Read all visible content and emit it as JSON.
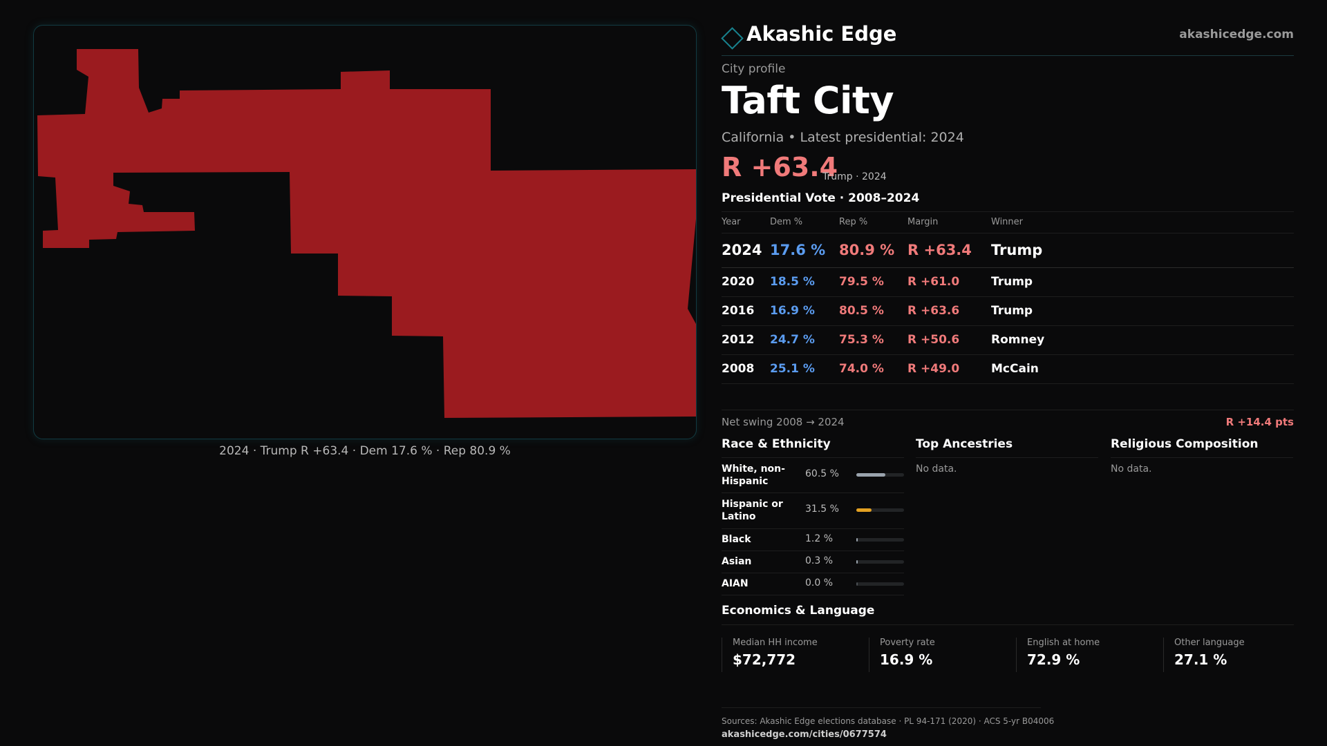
{
  "brand": {
    "name": "Akashic Edge",
    "url": "akashicedge.com",
    "accent": "#18828e"
  },
  "map": {
    "fill_color": "#9b1b1f",
    "caption": "2024 · Trump R +63.4 · Dem 17.6 % · Rep 80.9 %"
  },
  "header": {
    "label": "City profile",
    "city": "Taft City",
    "subtitle": "California • Latest presidential: 2024",
    "margin": "R +63.4",
    "margin_note": "Trump · 2024"
  },
  "vote": {
    "title": "Presidential Vote · 2008–2024",
    "columns": [
      "Year",
      "Dem %",
      "Rep %",
      "Margin",
      "Winner"
    ],
    "rows": [
      {
        "year": "2024",
        "dem": "17.6 %",
        "rep": "80.9 %",
        "margin": "R +63.4",
        "winner": "Trump"
      },
      {
        "year": "2020",
        "dem": "18.5 %",
        "rep": "79.5 %",
        "margin": "R +61.0",
        "winner": "Trump"
      },
      {
        "year": "2016",
        "dem": "16.9 %",
        "rep": "80.5 %",
        "margin": "R +63.6",
        "winner": "Trump"
      },
      {
        "year": "2012",
        "dem": "24.7 %",
        "rep": "75.3 %",
        "margin": "R +50.6",
        "winner": "Romney"
      },
      {
        "year": "2008",
        "dem": "25.1 %",
        "rep": "74.0 %",
        "margin": "R +49.0",
        "winner": "McCain"
      }
    ],
    "swing_label": "Net swing 2008 → 2024",
    "swing_value": "R +14.4 pts",
    "dem_color": "#5b9cf0",
    "rep_color": "#f07a7a"
  },
  "race": {
    "title": "Race & Ethnicity",
    "items": [
      {
        "label": "White, non-Hispanic",
        "pct": "60.5 %",
        "value": 60.5,
        "color": "#9aa3ad"
      },
      {
        "label": "Hispanic or Latino",
        "pct": "31.5 %",
        "value": 31.5,
        "color": "#e3a122"
      },
      {
        "label": "Black",
        "pct": "1.2 %",
        "value": 1.2,
        "color": "#9aa3ad"
      },
      {
        "label": "Asian",
        "pct": "0.3 %",
        "value": 0.3,
        "color": "#9aa3ad"
      },
      {
        "label": "AIAN",
        "pct": "0.0 %",
        "value": 0.0,
        "color": "#9aa3ad"
      }
    ]
  },
  "ancestry": {
    "title": "Top Ancestries",
    "empty": "No data."
  },
  "religion": {
    "title": "Religious Composition",
    "empty": "No data."
  },
  "economics": {
    "title": "Economics & Language",
    "cards": [
      {
        "label": "Median HH income",
        "value": "$72,772"
      },
      {
        "label": "Poverty rate",
        "value": "16.9 %"
      },
      {
        "label": "English at home",
        "value": "72.9 %"
      },
      {
        "label": "Other language",
        "value": "27.1 %"
      }
    ]
  },
  "footer": {
    "sources": "Sources: Akashic Edge elections database · PL 94-171 (2020) · ACS 5-yr B04006",
    "url": "akashicedge.com/cities/0677574"
  }
}
